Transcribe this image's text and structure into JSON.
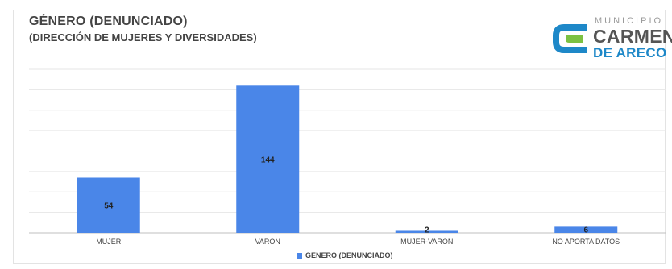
{
  "header": {
    "title": "GÉNERO (DENUNCIADO)",
    "subtitle": "(DIRECCIÓN DE MUJERES Y DIVERSIDADES)"
  },
  "logo": {
    "line1": "MUNICIPIO",
    "line2": "CARMEN",
    "line3": "DE ARECO"
  },
  "chart_data": {
    "type": "bar",
    "categories": [
      "MUJER",
      "VARON",
      "MUJER-VARON",
      "NO APORTA DATOS"
    ],
    "series": [
      {
        "name": "GENERO (DENUNCIADO)",
        "values": [
          54,
          144,
          2,
          6
        ],
        "color": "#4a86e8"
      }
    ],
    "ylim": [
      0,
      160
    ],
    "grid": true,
    "legend": "bottom-center",
    "data_labels": true
  }
}
